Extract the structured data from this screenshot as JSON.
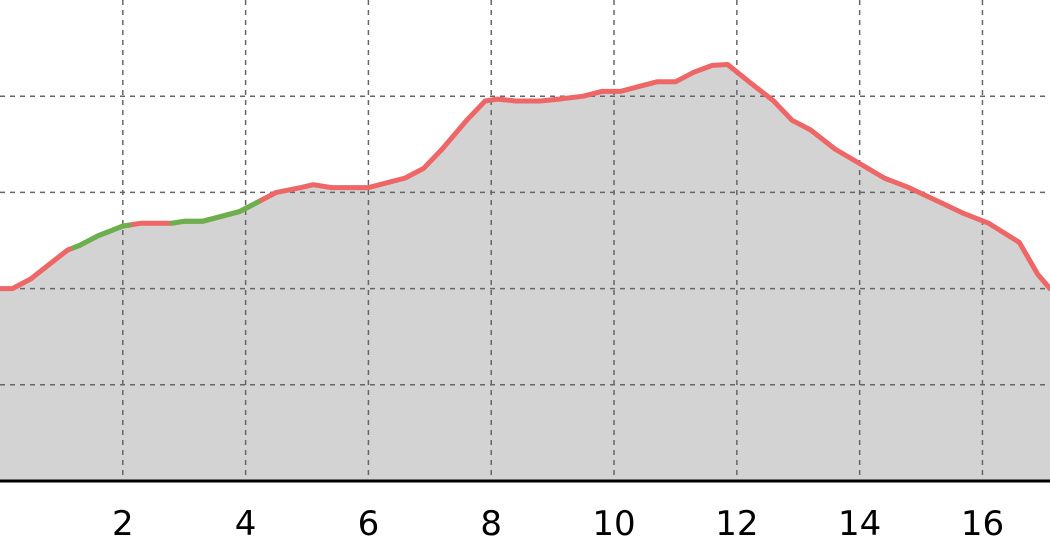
{
  "chart_data": {
    "type": "area",
    "title": "",
    "xlabel": "",
    "ylabel": "",
    "xlim": [
      0,
      17.1
    ],
    "ylim": [
      0,
      5
    ],
    "grid": true,
    "x_ticks": [
      2,
      4,
      6,
      8,
      10,
      12,
      14,
      16
    ],
    "x_tick_labels": [
      "2",
      "4",
      "6",
      "8",
      "10",
      "12",
      "14",
      "16"
    ],
    "y_gridlines": [
      1,
      2,
      3,
      4
    ],
    "colors": {
      "fill": "#d3d3d3",
      "line": "#ee6666",
      "highlight": "#6ab04c",
      "grid": "#666666",
      "axis": "#000000"
    },
    "series": [
      {
        "values_x": [
          0,
          0.2,
          0.5,
          0.8,
          1.1,
          1.3,
          1.6,
          1.8,
          2.0,
          2.3,
          2.5,
          2.8,
          3.0,
          3.3,
          3.6,
          3.9,
          4.2,
          4.5,
          4.9,
          5.1,
          5.4,
          5.7,
          6.0,
          6.3,
          6.6,
          6.9,
          7.2,
          7.6,
          7.9,
          8.1,
          8.4,
          8.8,
          9.1,
          9.5,
          9.8,
          10.1,
          10.4,
          10.7,
          11.0,
          11.3,
          11.6,
          11.85,
          12.2,
          12.6,
          12.9,
          13.2,
          13.6,
          14.0,
          14.4,
          14.8,
          15.3,
          15.7,
          16.1,
          16.6,
          16.9,
          17.1
        ],
        "values_y": [
          2.0,
          2.0,
          2.1,
          2.25,
          2.4,
          2.45,
          2.55,
          2.6,
          2.65,
          2.68,
          2.68,
          2.68,
          2.7,
          2.7,
          2.75,
          2.8,
          2.9,
          3.0,
          3.05,
          3.08,
          3.05,
          3.05,
          3.05,
          3.1,
          3.15,
          3.25,
          3.45,
          3.75,
          3.95,
          3.97,
          3.95,
          3.95,
          3.97,
          4.0,
          4.05,
          4.05,
          4.1,
          4.15,
          4.15,
          4.25,
          4.32,
          4.33,
          4.15,
          3.95,
          3.75,
          3.65,
          3.45,
          3.3,
          3.15,
          3.05,
          2.9,
          2.78,
          2.68,
          2.48,
          2.15,
          2.0
        ]
      }
    ],
    "highlight_segments": [
      {
        "x_start": 1.2,
        "x_end": 2.1
      },
      {
        "x_start": 2.8,
        "x_end": 4.2
      }
    ]
  }
}
